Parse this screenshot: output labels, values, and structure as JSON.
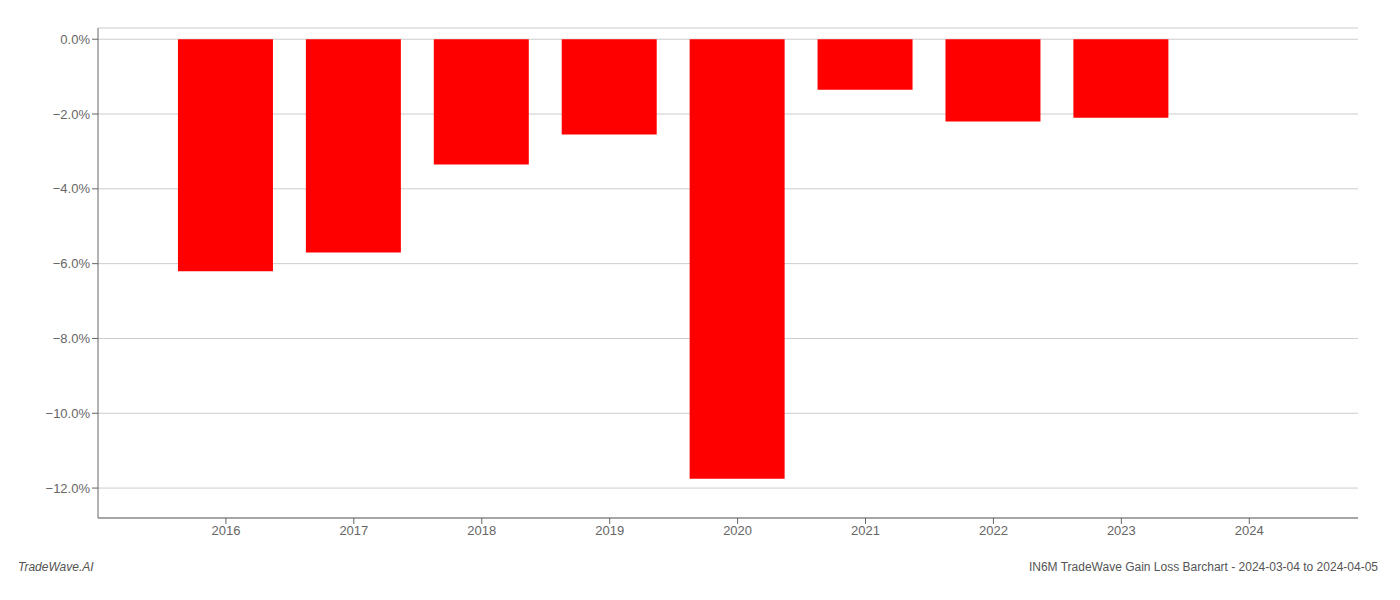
{
  "chart_data": {
    "type": "bar",
    "x": [
      2016,
      2017,
      2018,
      2019,
      2020,
      2021,
      2022,
      2023
    ],
    "values": [
      -6.2,
      -5.7,
      -3.35,
      -2.55,
      -11.75,
      -1.35,
      -2.2,
      -2.1
    ],
    "color": "#ff0000",
    "xlim": [
      2015.0,
      2024.85
    ],
    "xticks": [
      2016,
      2017,
      2018,
      2019,
      2020,
      2021,
      2022,
      2023,
      2024
    ],
    "ylim": [
      -12.8,
      0.3
    ],
    "yticks": [
      {
        "value": 0.0,
        "label": "0.0%"
      },
      {
        "value": -2.0,
        "label": "−2.0%"
      },
      {
        "value": -4.0,
        "label": "−4.0%"
      },
      {
        "value": -6.0,
        "label": "−6.0%"
      },
      {
        "value": -8.0,
        "label": "−8.0%"
      },
      {
        "value": -10.0,
        "label": "−10.0%"
      },
      {
        "value": -12.0,
        "label": "−12.0%"
      }
    ],
    "grid": true,
    "annotations": [
      "TradeWave.AI",
      "IN6M TradeWave Gain Loss Barchart - 2024-03-04 to 2024-04-05"
    ]
  }
}
